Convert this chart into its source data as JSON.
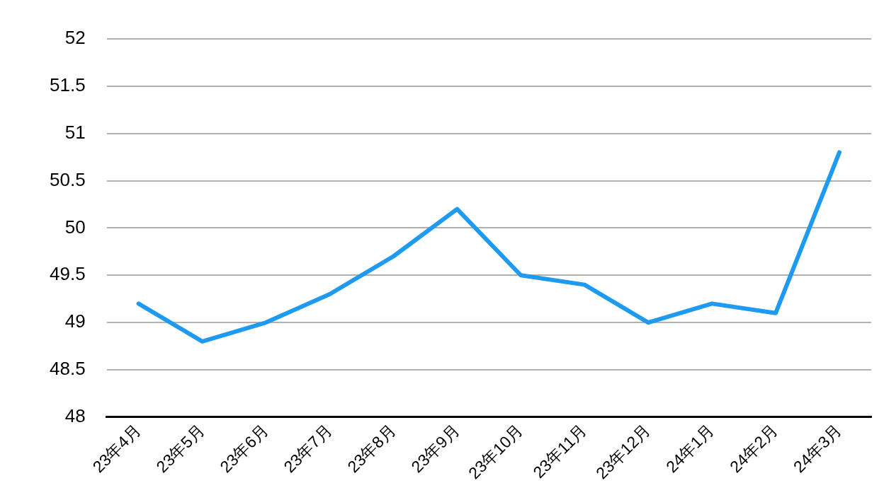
{
  "chart_data": {
    "type": "line",
    "categories": [
      "23年4月",
      "23年5月",
      "23年6月",
      "23年7月",
      "23年8月",
      "23年9月",
      "23年10月",
      "23年11月",
      "23年12月",
      "24年1月",
      "24年2月",
      "24年3月"
    ],
    "series": [
      {
        "color": "#1e9bf0",
        "values": [
          49.2,
          48.8,
          49.0,
          49.3,
          49.7,
          50.2,
          49.5,
          49.4,
          49.0,
          49.2,
          49.1,
          50.8
        ]
      }
    ],
    "ylim": [
      48,
      52
    ],
    "yticks": [
      48,
      48.5,
      49,
      49.5,
      50,
      50.5,
      51,
      51.5,
      52
    ],
    "grid": "y",
    "legend": false,
    "marker": "none",
    "line_style": "solid"
  }
}
